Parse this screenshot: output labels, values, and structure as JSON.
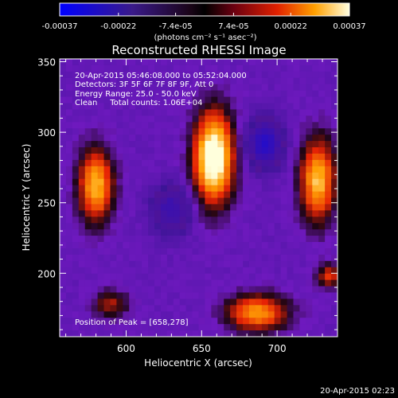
{
  "colorbar": {
    "tick_labels": [
      "-0.00037",
      "-0.00022",
      "-7.4e-05",
      "7.4e-05",
      "0.00022",
      "0.00037"
    ],
    "units": "(photons cm⁻² s⁻¹ asec⁻²)",
    "range": [
      -0.00037,
      0.00037
    ]
  },
  "chart_data": {
    "type": "heatmap",
    "title": "Reconstructed RHESSI Image",
    "xlabel": "Heliocentric X (arcsec)",
    "ylabel": "Heliocentric Y (arcsec)",
    "xlim": [
      556,
      740
    ],
    "ylim": [
      155,
      352
    ],
    "x_ticks": [
      600,
      650,
      700
    ],
    "y_ticks": [
      200,
      250,
      300,
      350
    ],
    "annotations": [
      "20-Apr-2015 05:46:08.000 to 05:52:04.000",
      "Detectors: 3F 5F 6F 7F 8F 9F, Att 0",
      "Energy Range: 25.0 - 50.0 keV",
      "Clean     Total counts: 1.06E+04"
    ],
    "peak_label": "Position of Peak = [658,278]",
    "peak": {
      "x": 658,
      "y": 278
    },
    "sources": [
      {
        "x": 658,
        "y": 282,
        "sx": 9,
        "sy": 22,
        "amp": 1.0
      },
      {
        "x": 580,
        "y": 262,
        "sx": 8,
        "sy": 18,
        "amp": 0.7
      },
      {
        "x": 727,
        "y": 266,
        "sx": 8,
        "sy": 20,
        "amp": 0.72
      },
      {
        "x": 687,
        "y": 172,
        "sx": 14,
        "sy": 9,
        "amp": 0.62
      },
      {
        "x": 590,
        "y": 178,
        "sx": 8,
        "sy": 7,
        "amp": 0.32
      },
      {
        "x": 735,
        "y": 198,
        "sx": 6,
        "sy": 6,
        "amp": 0.4
      },
      {
        "x": 692,
        "y": 292,
        "sx": 8,
        "sy": 12,
        "amp": -0.55
      },
      {
        "x": 630,
        "y": 245,
        "sx": 9,
        "sy": 12,
        "amp": -0.38
      }
    ]
  },
  "timestamp": "20-Apr-2015 02:23"
}
